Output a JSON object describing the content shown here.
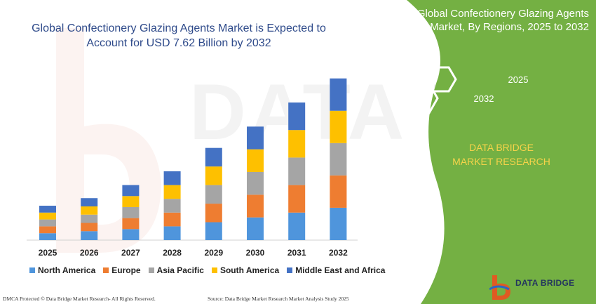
{
  "chart_data": {
    "type": "bar",
    "stacked": true,
    "title": "Global Confectionery Glazing Agents Market is Expected to Account for USD 7.62 Billion by 2032",
    "categories": [
      "2025",
      "2026",
      "2027",
      "2028",
      "2029",
      "2030",
      "2031",
      "2032"
    ],
    "series": [
      {
        "name": "North America",
        "color": "#4f95dc",
        "values": [
          1.0,
          1.3,
          1.6,
          2.0,
          2.6,
          3.3,
          4.0,
          4.7
        ]
      },
      {
        "name": "Europe",
        "color": "#ee7d31",
        "values": [
          1.0,
          1.2,
          1.6,
          2.0,
          2.7,
          3.3,
          4.0,
          4.7
        ]
      },
      {
        "name": "Asia Pacific",
        "color": "#a5a5a5",
        "values": [
          1.0,
          1.2,
          1.6,
          2.0,
          2.7,
          3.3,
          4.0,
          4.7
        ]
      },
      {
        "name": "South America",
        "color": "#fec000",
        "values": [
          1.0,
          1.2,
          1.6,
          2.0,
          2.7,
          3.3,
          4.0,
          4.7
        ]
      },
      {
        "name": "Middle East and Africa",
        "color": "#4472c4",
        "values": [
          1.0,
          1.2,
          1.6,
          2.0,
          2.7,
          3.3,
          4.0,
          4.7
        ]
      }
    ],
    "legend_position": "bottom",
    "grid": false
  },
  "panel": {
    "title": "Global Confectionery Glazing Agents Market, By Regions, 2025 to 2032",
    "hex_start": "2032",
    "hex_end": "2025",
    "brand": "DATA BRIDGE MARKET RESEARCH",
    "green": "#74b043"
  },
  "watermark": "DATA BRIDGE",
  "footer": {
    "left": "DMCA Protected © Data Bridge Market Research- All Rights Reserved.",
    "right": "Source: Data Bridge Market Research  Market Analysis Study 2025"
  },
  "logo": {
    "name": "DATA BRIDGE"
  }
}
